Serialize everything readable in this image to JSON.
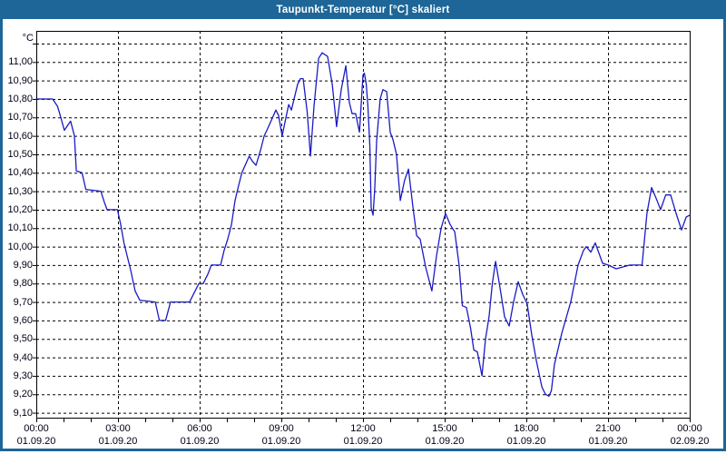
{
  "window": {
    "title": "Taupunkt-Temperatur [°C] skaliert"
  },
  "colors": {
    "titlebar": "#1d6697",
    "window_border": "#1d6697",
    "plot_background": "#ffffff",
    "grid": "#000000",
    "axis_border": "#000000",
    "tick_text": "#000014",
    "series_line": "#1a1ac6"
  },
  "y_axis": {
    "unit_label": "°C",
    "tick_labels": [
      "11,00",
      "10,90",
      "10,80",
      "10,70",
      "10,60",
      "10,50",
      "10,40",
      "10,30",
      "10,20",
      "10,10",
      "10,00",
      "9,90",
      "9,80",
      "9,70",
      "9,60",
      "9,50",
      "9,40",
      "9,30",
      "9,20",
      "9,10"
    ],
    "tick_values": [
      11.0,
      10.9,
      10.8,
      10.7,
      10.6,
      10.5,
      10.4,
      10.3,
      10.2,
      10.1,
      10.0,
      9.9,
      9.8,
      9.7,
      9.6,
      9.5,
      9.4,
      9.3,
      9.2,
      9.1
    ],
    "extra_gridline_value": 11.1
  },
  "x_axis": {
    "major_ticks": [
      {
        "hour": 0,
        "time": "00:00",
        "date": "01.09.20"
      },
      {
        "hour": 3,
        "time": "03:00",
        "date": "01.09.20"
      },
      {
        "hour": 6,
        "time": "06:00",
        "date": "01.09.20"
      },
      {
        "hour": 9,
        "time": "09:00",
        "date": "01.09.20"
      },
      {
        "hour": 12,
        "time": "12:00",
        "date": "01.09.20"
      },
      {
        "hour": 15,
        "time": "15:00",
        "date": "01.09.20"
      },
      {
        "hour": 18,
        "time": "18:00",
        "date": "01.09.20"
      },
      {
        "hour": 21,
        "time": "21:00",
        "date": "01.09.20"
      },
      {
        "hour": 24,
        "time": "00:00",
        "date": "02.09.20"
      }
    ],
    "minor_tick_every_hours": 1
  },
  "chart_data": {
    "type": "line",
    "title": "Taupunkt-Temperatur [°C] skaliert",
    "xlabel": "",
    "ylabel": "°C",
    "x_unit": "hours since 01.09.20 00:00",
    "xlim": [
      0,
      24
    ],
    "ylim": [
      9.075,
      11.17
    ],
    "y_gridline_step": 0.1,
    "x_gridline_step_hours": 3,
    "grid": "dashed",
    "legend": "none",
    "series": [
      {
        "name": "Taupunkt-Temperatur [°C]",
        "color": "#1a1ac6",
        "points_hour_value": [
          [
            0,
            10.8
          ],
          [
            0.6,
            10.8
          ],
          [
            0.78,
            10.76
          ],
          [
            0.9,
            10.7
          ],
          [
            1.03,
            10.63
          ],
          [
            1.26,
            10.68
          ],
          [
            1.4,
            10.6
          ],
          [
            1.47,
            10.41
          ],
          [
            1.68,
            10.4
          ],
          [
            1.82,
            10.31
          ],
          [
            2.37,
            10.3
          ],
          [
            2.5,
            10.24
          ],
          [
            2.6,
            10.2
          ],
          [
            2.98,
            10.2
          ],
          [
            3.1,
            10.12
          ],
          [
            3.22,
            10.02
          ],
          [
            3.47,
            9.87
          ],
          [
            3.63,
            9.76
          ],
          [
            3.8,
            9.71
          ],
          [
            4.37,
            9.7
          ],
          [
            4.52,
            9.6
          ],
          [
            4.75,
            9.6
          ],
          [
            4.93,
            9.7
          ],
          [
            5.63,
            9.7
          ],
          [
            5.8,
            9.75
          ],
          [
            5.97,
            9.8
          ],
          [
            6.13,
            9.8
          ],
          [
            6.3,
            9.85
          ],
          [
            6.43,
            9.9
          ],
          [
            6.77,
            9.9
          ],
          [
            6.9,
            9.98
          ],
          [
            7.03,
            10.04
          ],
          [
            7.17,
            10.12
          ],
          [
            7.3,
            10.25
          ],
          [
            7.43,
            10.33
          ],
          [
            7.55,
            10.4
          ],
          [
            7.73,
            10.46
          ],
          [
            7.82,
            10.49
          ],
          [
            7.95,
            10.46
          ],
          [
            8.07,
            10.44
          ],
          [
            8.25,
            10.53
          ],
          [
            8.37,
            10.6
          ],
          [
            8.5,
            10.64
          ],
          [
            8.8,
            10.74
          ],
          [
            8.9,
            10.71
          ],
          [
            9.03,
            10.6
          ],
          [
            9.27,
            10.77
          ],
          [
            9.37,
            10.74
          ],
          [
            9.6,
            10.88
          ],
          [
            9.7,
            10.91
          ],
          [
            9.8,
            10.91
          ],
          [
            9.95,
            10.73
          ],
          [
            10.07,
            10.49
          ],
          [
            10.2,
            10.76
          ],
          [
            10.37,
            11.02
          ],
          [
            10.5,
            11.05
          ],
          [
            10.7,
            11.03
          ],
          [
            10.87,
            10.88
          ],
          [
            11.03,
            10.65
          ],
          [
            11.2,
            10.85
          ],
          [
            11.37,
            10.98
          ],
          [
            11.5,
            10.78
          ],
          [
            11.6,
            10.72
          ],
          [
            11.73,
            10.72
          ],
          [
            11.87,
            10.62
          ],
          [
            12.0,
            10.93
          ],
          [
            12.05,
            10.94
          ],
          [
            12.12,
            10.88
          ],
          [
            12.18,
            10.76
          ],
          [
            12.25,
            10.55
          ],
          [
            12.3,
            10.21
          ],
          [
            12.37,
            10.17
          ],
          [
            12.43,
            10.31
          ],
          [
            12.5,
            10.57
          ],
          [
            12.63,
            10.8
          ],
          [
            12.73,
            10.85
          ],
          [
            12.87,
            10.84
          ],
          [
            13.0,
            10.62
          ],
          [
            13.1,
            10.58
          ],
          [
            13.23,
            10.5
          ],
          [
            13.37,
            10.25
          ],
          [
            13.53,
            10.36
          ],
          [
            13.67,
            10.42
          ],
          [
            13.83,
            10.22
          ],
          [
            13.97,
            10.06
          ],
          [
            14.1,
            10.04
          ],
          [
            14.3,
            9.89
          ],
          [
            14.53,
            9.76
          ],
          [
            14.7,
            9.95
          ],
          [
            14.87,
            10.1
          ],
          [
            15.03,
            10.18
          ],
          [
            15.2,
            10.12
          ],
          [
            15.37,
            10.08
          ],
          [
            15.53,
            9.9
          ],
          [
            15.65,
            9.68
          ],
          [
            15.8,
            9.67
          ],
          [
            15.95,
            9.56
          ],
          [
            16.07,
            9.44
          ],
          [
            16.2,
            9.43
          ],
          [
            16.37,
            9.3
          ],
          [
            16.5,
            9.5
          ],
          [
            16.63,
            9.62
          ],
          [
            16.75,
            9.8
          ],
          [
            16.87,
            9.92
          ],
          [
            17.03,
            9.78
          ],
          [
            17.2,
            9.62
          ],
          [
            17.37,
            9.57
          ],
          [
            17.53,
            9.7
          ],
          [
            17.7,
            9.81
          ],
          [
            17.87,
            9.74
          ],
          [
            18.03,
            9.69
          ],
          [
            18.2,
            9.52
          ],
          [
            18.37,
            9.38
          ],
          [
            18.57,
            9.24
          ],
          [
            18.7,
            9.2
          ],
          [
            18.83,
            9.19
          ],
          [
            18.92,
            9.22
          ],
          [
            19.03,
            9.36
          ],
          [
            19.3,
            9.53
          ],
          [
            19.63,
            9.7
          ],
          [
            19.9,
            9.9
          ],
          [
            20.1,
            9.98
          ],
          [
            20.2,
            10.0
          ],
          [
            20.37,
            9.97
          ],
          [
            20.53,
            10.02
          ],
          [
            20.8,
            9.91
          ],
          [
            21.0,
            9.9
          ],
          [
            21.3,
            9.88
          ],
          [
            21.55,
            9.89
          ],
          [
            21.8,
            9.9
          ],
          [
            22.25,
            9.9
          ],
          [
            22.43,
            10.18
          ],
          [
            22.6,
            10.32
          ],
          [
            22.8,
            10.25
          ],
          [
            22.93,
            10.2
          ],
          [
            23.12,
            10.28
          ],
          [
            23.3,
            10.28
          ],
          [
            23.5,
            10.18
          ],
          [
            23.7,
            10.09
          ],
          [
            23.87,
            10.16
          ],
          [
            24.0,
            10.17
          ]
        ]
      }
    ]
  }
}
